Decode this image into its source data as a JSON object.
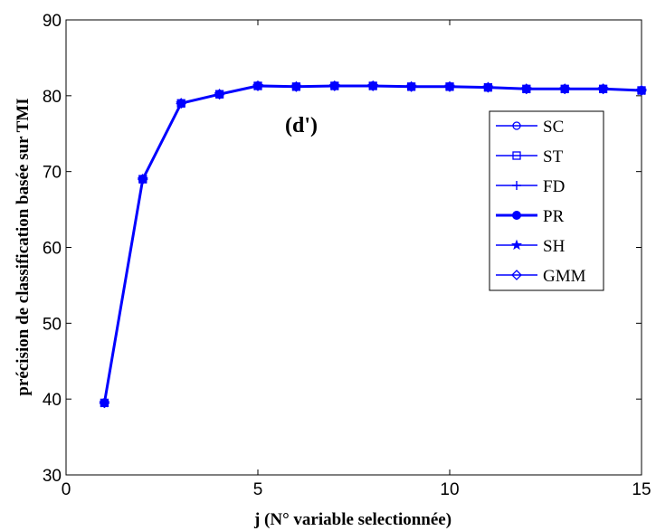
{
  "chart_data": {
    "type": "line",
    "title": "",
    "xlabel": "j (N° variable selectionnée)",
    "ylabel": "précision de classification basée sur TMI",
    "annotation": "(d')",
    "xlim": [
      0,
      15
    ],
    "ylim": [
      30,
      90
    ],
    "xticks": [
      0,
      5,
      10,
      15
    ],
    "yticks": [
      30,
      40,
      50,
      60,
      70,
      80,
      90
    ],
    "grid": false,
    "legend_position": "upper-right",
    "line_color": "#0000ff",
    "x": [
      1,
      2,
      3,
      4,
      5,
      6,
      7,
      8,
      9,
      10,
      11,
      12,
      13,
      14,
      15
    ],
    "series": [
      {
        "name": "SC",
        "marker": "circle",
        "values": [
          39.5,
          69.0,
          79.0,
          80.2,
          81.3,
          81.2,
          81.3,
          81.3,
          81.2,
          81.2,
          81.1,
          80.9,
          80.9,
          80.9,
          80.7
        ]
      },
      {
        "name": "ST",
        "marker": "square",
        "values": [
          39.5,
          69.0,
          79.0,
          80.2,
          81.3,
          81.2,
          81.3,
          81.3,
          81.2,
          81.2,
          81.1,
          80.9,
          80.9,
          80.9,
          80.7
        ]
      },
      {
        "name": "FD",
        "marker": "plus",
        "values": [
          39.5,
          69.0,
          79.0,
          80.2,
          81.3,
          81.2,
          81.3,
          81.3,
          81.2,
          81.2,
          81.1,
          80.9,
          80.9,
          80.9,
          80.7
        ]
      },
      {
        "name": "PR",
        "marker": "filled-circle",
        "values": [
          39.5,
          69.0,
          79.0,
          80.2,
          81.3,
          81.2,
          81.3,
          81.3,
          81.2,
          81.2,
          81.1,
          80.9,
          80.9,
          80.9,
          80.7
        ]
      },
      {
        "name": "SH",
        "marker": "star",
        "values": [
          39.5,
          69.0,
          79.0,
          80.2,
          81.3,
          81.2,
          81.3,
          81.3,
          81.2,
          81.2,
          81.1,
          80.9,
          80.9,
          80.9,
          80.7
        ]
      },
      {
        "name": "GMM",
        "marker": "diamond",
        "values": [
          39.5,
          69.0,
          79.0,
          80.2,
          81.3,
          81.2,
          81.3,
          81.3,
          81.2,
          81.2,
          81.1,
          80.9,
          80.9,
          80.9,
          80.7
        ]
      }
    ]
  }
}
